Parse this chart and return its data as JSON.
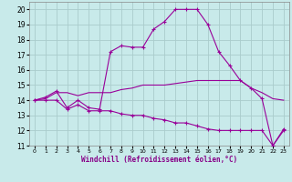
{
  "xlabel": "Windchill (Refroidissement éolien,°C)",
  "background_color": "#c8eaea",
  "grid_color": "#aacccc",
  "line_color": "#990099",
  "xlim": [
    -0.5,
    23.5
  ],
  "ylim": [
    11,
    20.5
  ],
  "yticks": [
    11,
    12,
    13,
    14,
    15,
    16,
    17,
    18,
    19,
    20
  ],
  "xticks": [
    0,
    1,
    2,
    3,
    4,
    5,
    6,
    7,
    8,
    9,
    10,
    11,
    12,
    13,
    14,
    15,
    16,
    17,
    18,
    19,
    20,
    21,
    22,
    23
  ],
  "series1_x": [
    0,
    1,
    2,
    3,
    4,
    5,
    6,
    7,
    8,
    9,
    10,
    11,
    12,
    13,
    14,
    15,
    16,
    17,
    18,
    19,
    20,
    21,
    22,
    23
  ],
  "series1_y": [
    14.0,
    14.2,
    14.6,
    13.5,
    14.0,
    13.5,
    13.4,
    17.2,
    17.6,
    17.5,
    17.5,
    18.7,
    19.2,
    20.0,
    20.0,
    20.0,
    19.0,
    17.2,
    16.3,
    15.3,
    14.8,
    14.1,
    11.0,
    12.0
  ],
  "series2_x": [
    0,
    1,
    2,
    3,
    4,
    5,
    6,
    7,
    8,
    9,
    10,
    11,
    12,
    13,
    14,
    15,
    16,
    17,
    18,
    19,
    20,
    21,
    22,
    23
  ],
  "series2_y": [
    14.0,
    14.1,
    14.5,
    14.5,
    14.3,
    14.5,
    14.5,
    14.5,
    14.7,
    14.8,
    15.0,
    15.0,
    15.0,
    15.1,
    15.2,
    15.3,
    15.3,
    15.3,
    15.3,
    15.3,
    14.8,
    14.5,
    14.1,
    14.0
  ],
  "series3_x": [
    0,
    1,
    2,
    3,
    4,
    5,
    6,
    7,
    8,
    9,
    10,
    11,
    12,
    13,
    14,
    15,
    16,
    17,
    18,
    19,
    20,
    21,
    22,
    23
  ],
  "series3_y": [
    14.0,
    14.0,
    14.0,
    13.4,
    13.7,
    13.3,
    13.3,
    13.3,
    13.1,
    13.0,
    13.0,
    12.8,
    12.7,
    12.5,
    12.5,
    12.3,
    12.1,
    12.0,
    12.0,
    12.0,
    12.0,
    12.0,
    11.0,
    12.1
  ]
}
